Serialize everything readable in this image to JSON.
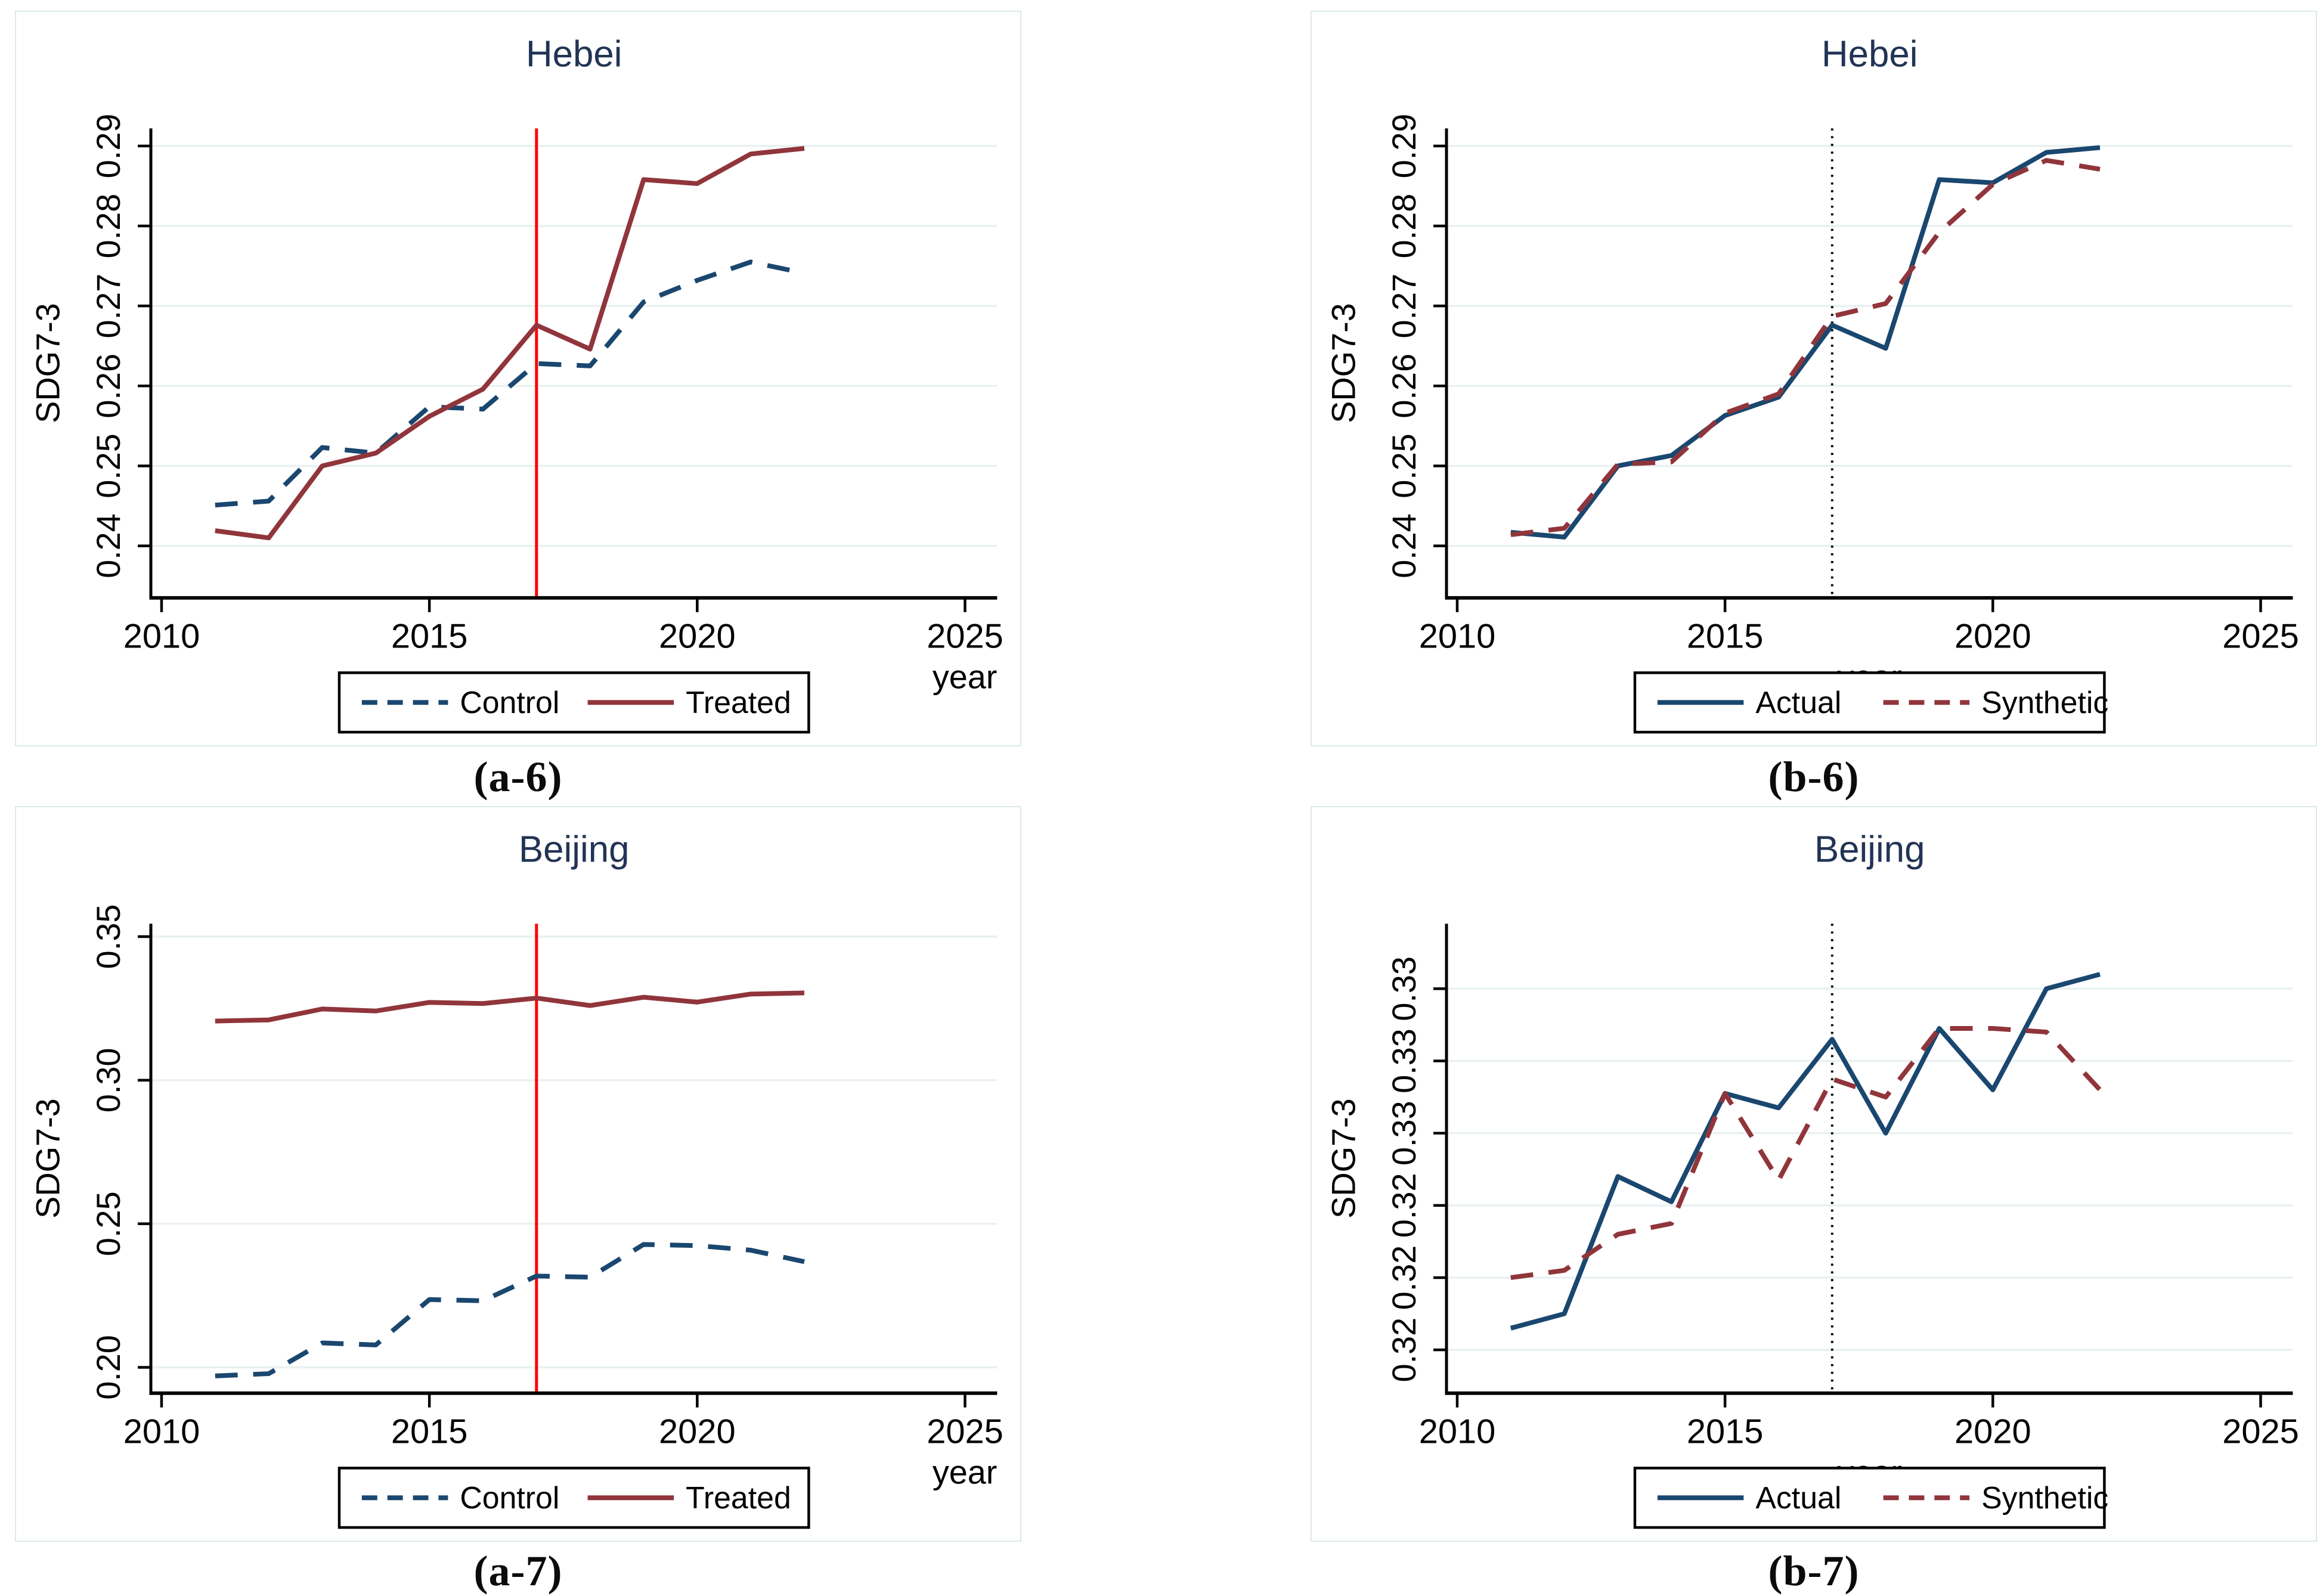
{
  "colors": {
    "navy": "#1A476F",
    "maroon": "#90353B",
    "red": "#FE0000",
    "grid": "#EAF1F3",
    "axis": "#000000",
    "title_text": "#223455",
    "caption_text": "#0b0b0b",
    "panel_border": "#DDE8EB",
    "background": "#FFFFFF"
  },
  "chart_data": [
    {
      "id": "a-6",
      "type": "line",
      "title": "Hebei",
      "caption": "(a-6)",
      "ylabel": "SDG7-3",
      "xlabel": "year",
      "xlabel_align": "right",
      "x": [
        2011,
        2012,
        2013,
        2014,
        2015,
        2016,
        2017,
        2018,
        2019,
        2020,
        2021,
        2022
      ],
      "xlim": [
        2009.8,
        2025.6
      ],
      "xticks": [
        {
          "v": 2010,
          "label": "2010"
        },
        {
          "v": 2015,
          "label": "2015"
        },
        {
          "v": 2020,
          "label": "2020"
        },
        {
          "v": 2025,
          "label": "2025"
        }
      ],
      "ylim": [
        0.2335,
        0.2922
      ],
      "yticks": [
        {
          "v": 0.24,
          "label": "0.24"
        },
        {
          "v": 0.25,
          "label": "0.25"
        },
        {
          "v": 0.26,
          "label": "0.26"
        },
        {
          "v": 0.27,
          "label": "0.27"
        },
        {
          "v": 0.28,
          "label": "0.28"
        },
        {
          "v": 0.29,
          "label": "0.29"
        }
      ],
      "vline": {
        "x": 2017,
        "color": "red",
        "style": "solid"
      },
      "grid": true,
      "legend_position": "bottom-center",
      "series": [
        {
          "name": "Control",
          "color": "navy",
          "dash": true,
          "values": [
            0.2451,
            0.2456,
            0.2523,
            0.2516,
            0.2574,
            0.2571,
            0.2628,
            0.2625,
            0.2705,
            0.2732,
            0.2755,
            0.2741
          ]
        },
        {
          "name": "Treated",
          "color": "maroon",
          "dash": false,
          "values": [
            0.2419,
            0.241,
            0.25,
            0.2516,
            0.2562,
            0.2596,
            0.2676,
            0.2646,
            0.2858,
            0.2853,
            0.289,
            0.2897
          ]
        }
      ]
    },
    {
      "id": "b-6",
      "type": "line",
      "title": "Hebei",
      "caption": "(b-6)",
      "ylabel": "SDG7-3",
      "xlabel": "year",
      "xlabel_align": "center",
      "x": [
        2011,
        2012,
        2013,
        2014,
        2015,
        2016,
        2017,
        2018,
        2019,
        2020,
        2021,
        2022
      ],
      "xlim": [
        2009.8,
        2025.6
      ],
      "xticks": [
        {
          "v": 2010,
          "label": "2010"
        },
        {
          "v": 2015,
          "label": "2015"
        },
        {
          "v": 2020,
          "label": "2020"
        },
        {
          "v": 2025,
          "label": "2025"
        }
      ],
      "ylim": [
        0.2335,
        0.2922
      ],
      "yticks": [
        {
          "v": 0.24,
          "label": "0.24"
        },
        {
          "v": 0.25,
          "label": "0.25"
        },
        {
          "v": 0.26,
          "label": "0.26"
        },
        {
          "v": 0.27,
          "label": "0.27"
        },
        {
          "v": 0.28,
          "label": "0.28"
        },
        {
          "v": 0.29,
          "label": "0.29"
        }
      ],
      "vline": {
        "x": 2017,
        "color": "black",
        "style": "dotted"
      },
      "grid": true,
      "legend_position": "bottom-center",
      "series": [
        {
          "name": "Actual",
          "color": "navy",
          "dash": false,
          "values": [
            0.2417,
            0.2411,
            0.25,
            0.2513,
            0.2563,
            0.2586,
            0.2676,
            0.2647,
            0.2858,
            0.2854,
            0.2892,
            0.2898
          ]
        },
        {
          "name": "Synthetic",
          "color": "maroon",
          "dash": true,
          "values": [
            0.2414,
            0.2422,
            0.2502,
            0.2505,
            0.2566,
            0.259,
            0.2687,
            0.2703,
            0.2792,
            0.2852,
            0.2882,
            0.2871
          ]
        }
      ]
    },
    {
      "id": "a-7",
      "type": "line",
      "title": "Beijing",
      "caption": "(a-7)",
      "ylabel": "SDG7-3",
      "xlabel": "year",
      "xlabel_align": "right",
      "x": [
        2011,
        2012,
        2013,
        2014,
        2015,
        2016,
        2017,
        2018,
        2019,
        2020,
        2021,
        2022
      ],
      "xlim": [
        2009.8,
        2025.6
      ],
      "xticks": [
        {
          "v": 2010,
          "label": "2010"
        },
        {
          "v": 2015,
          "label": "2015"
        },
        {
          "v": 2020,
          "label": "2020"
        },
        {
          "v": 2025,
          "label": "2025"
        }
      ],
      "ylim": [
        0.191,
        0.3545
      ],
      "yticks": [
        {
          "v": 0.2,
          "label": "0.20"
        },
        {
          "v": 0.25,
          "label": "0.25"
        },
        {
          "v": 0.3,
          "label": "0.30"
        },
        {
          "v": 0.35,
          "label": "0.35"
        }
      ],
      "vline": {
        "x": 2017,
        "color": "red",
        "style": "solid"
      },
      "grid": true,
      "legend_position": "bottom-center",
      "series": [
        {
          "name": "Control",
          "color": "navy",
          "dash": true,
          "values": [
            0.197,
            0.1978,
            0.2085,
            0.2078,
            0.2236,
            0.2232,
            0.2318,
            0.2314,
            0.2428,
            0.2424,
            0.2408,
            0.2368
          ]
        },
        {
          "name": "Treated",
          "color": "maroon",
          "dash": false,
          "values": [
            0.3206,
            0.321,
            0.3248,
            0.3241,
            0.3271,
            0.3267,
            0.3286,
            0.326,
            0.3289,
            0.3272,
            0.33,
            0.3304
          ]
        }
      ]
    },
    {
      "id": "b-7",
      "type": "line",
      "title": "Beijing",
      "caption": "(b-7)",
      "ylabel": "SDG7-3",
      "xlabel": "year",
      "xlabel_align": "center",
      "x": [
        2011,
        2012,
        2013,
        2014,
        2015,
        2016,
        2017,
        2018,
        2019,
        2020,
        2021,
        2022
      ],
      "xlim": [
        2009.8,
        2025.6
      ],
      "xticks": [
        {
          "v": 2010,
          "label": "2010"
        },
        {
          "v": 2015,
          "label": "2015"
        },
        {
          "v": 2020,
          "label": "2020"
        },
        {
          "v": 2025,
          "label": "2025"
        }
      ],
      "ylim": [
        0.3188,
        0.3318
      ],
      "yticks": [
        {
          "v": 0.32,
          "label": "0.32"
        },
        {
          "v": 0.322,
          "label": "0.32"
        },
        {
          "v": 0.324,
          "label": "0.32"
        },
        {
          "v": 0.326,
          "label": "0.33"
        },
        {
          "v": 0.328,
          "label": "0.33"
        },
        {
          "v": 0.33,
          "label": "0.33"
        }
      ],
      "vline": {
        "x": 2017,
        "color": "black",
        "style": "dotted"
      },
      "grid": true,
      "legend_position": "bottom-center",
      "series": [
        {
          "name": "Actual",
          "color": "navy",
          "dash": false,
          "values": [
            0.3206,
            0.321,
            0.3248,
            0.3241,
            0.3271,
            0.3267,
            0.3286,
            0.326,
            0.3289,
            0.3272,
            0.33,
            0.3304
          ]
        },
        {
          "name": "Synthetic",
          "color": "maroon",
          "dash": true,
          "values": [
            0.322,
            0.3222,
            0.3232,
            0.3235,
            0.3271,
            0.3247,
            0.3275,
            0.327,
            0.3289,
            0.3289,
            0.3288,
            0.3272
          ]
        }
      ]
    }
  ]
}
